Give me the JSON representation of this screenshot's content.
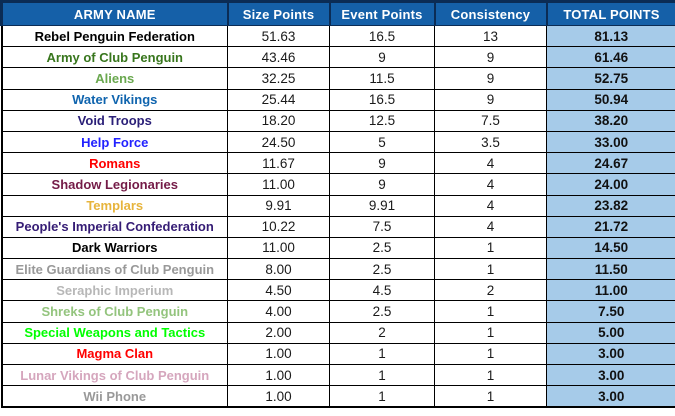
{
  "colors": {
    "header_bg": "#1560a8",
    "header_divider": "#0b2c55",
    "total_col_bg": "#a6cbe9",
    "grid_border": "#000000",
    "header_text": "#ffffff"
  },
  "chart_data": {
    "type": "table",
    "title": "",
    "columns": [
      "ARMY NAME",
      "Size Points",
      "Event Points",
      "Consistency",
      "TOTAL POINTS"
    ],
    "rows": [
      {
        "army": "Rebel Penguin Federation",
        "color": "#000000",
        "size": "51.63",
        "event": "16.5",
        "consistency": "13",
        "total": "81.13"
      },
      {
        "army": "Army of Club Penguin",
        "color": "#38761d",
        "size": "43.46",
        "event": "9",
        "consistency": "9",
        "total": "61.46"
      },
      {
        "army": "Aliens",
        "color": "#6aa84f",
        "size": "32.25",
        "event": "11.5",
        "consistency": "9",
        "total": "52.75"
      },
      {
        "army": "Water Vikings",
        "color": "#0f64ae",
        "size": "25.44",
        "event": "16.5",
        "consistency": "9",
        "total": "50.94"
      },
      {
        "army": "Void Troops",
        "color": "#2a1f78",
        "size": "18.20",
        "event": "12.5",
        "consistency": "7.5",
        "total": "38.20"
      },
      {
        "army": "Help Force",
        "color": "#2222ff",
        "size": "24.50",
        "event": "5",
        "consistency": "3.5",
        "total": "33.00"
      },
      {
        "army": "Romans",
        "color": "#ff0000",
        "size": "11.67",
        "event": "9",
        "consistency": "4",
        "total": "24.67"
      },
      {
        "army": "Shadow Legionaries",
        "color": "#741b47",
        "size": "11.00",
        "event": "9",
        "consistency": "4",
        "total": "24.00"
      },
      {
        "army": "Templars",
        "color": "#e7b43c",
        "size": "9.91",
        "event": "9.91",
        "consistency": "4",
        "total": "23.82"
      },
      {
        "army": "People's Imperial Confederation",
        "color": "#351c75",
        "size": "10.22",
        "event": "7.5",
        "consistency": "4",
        "total": "21.72"
      },
      {
        "army": "Dark Warriors",
        "color": "#000000",
        "size": "11.00",
        "event": "2.5",
        "consistency": "1",
        "total": "14.50"
      },
      {
        "army": "Elite Guardians of Club Penguin",
        "color": "#999999",
        "size": "8.00",
        "event": "2.5",
        "consistency": "1",
        "total": "11.50"
      },
      {
        "army": "Seraphic Imperium",
        "color": "#b7b7b7",
        "size": "4.50",
        "event": "4.5",
        "consistency": "2",
        "total": "11.00"
      },
      {
        "army": "Shreks of Club Penguin",
        "color": "#93c47d",
        "size": "4.00",
        "event": "2.5",
        "consistency": "1",
        "total": "7.50"
      },
      {
        "army": "Special Weapons and Tactics",
        "color": "#00ff00",
        "size": "2.00",
        "event": "2",
        "consistency": "1",
        "total": "5.00"
      },
      {
        "army": "Magma Clan",
        "color": "#ff0000",
        "size": "1.00",
        "event": "1",
        "consistency": "1",
        "total": "3.00"
      },
      {
        "army": "Lunar Vikings of Club Penguin",
        "color": "#d5a6bd",
        "size": "1.00",
        "event": "1",
        "consistency": "1",
        "total": "3.00"
      },
      {
        "army": "Wii Phone",
        "color": "#999999",
        "size": "1.00",
        "event": "1",
        "consistency": "1",
        "total": "3.00"
      }
    ]
  }
}
